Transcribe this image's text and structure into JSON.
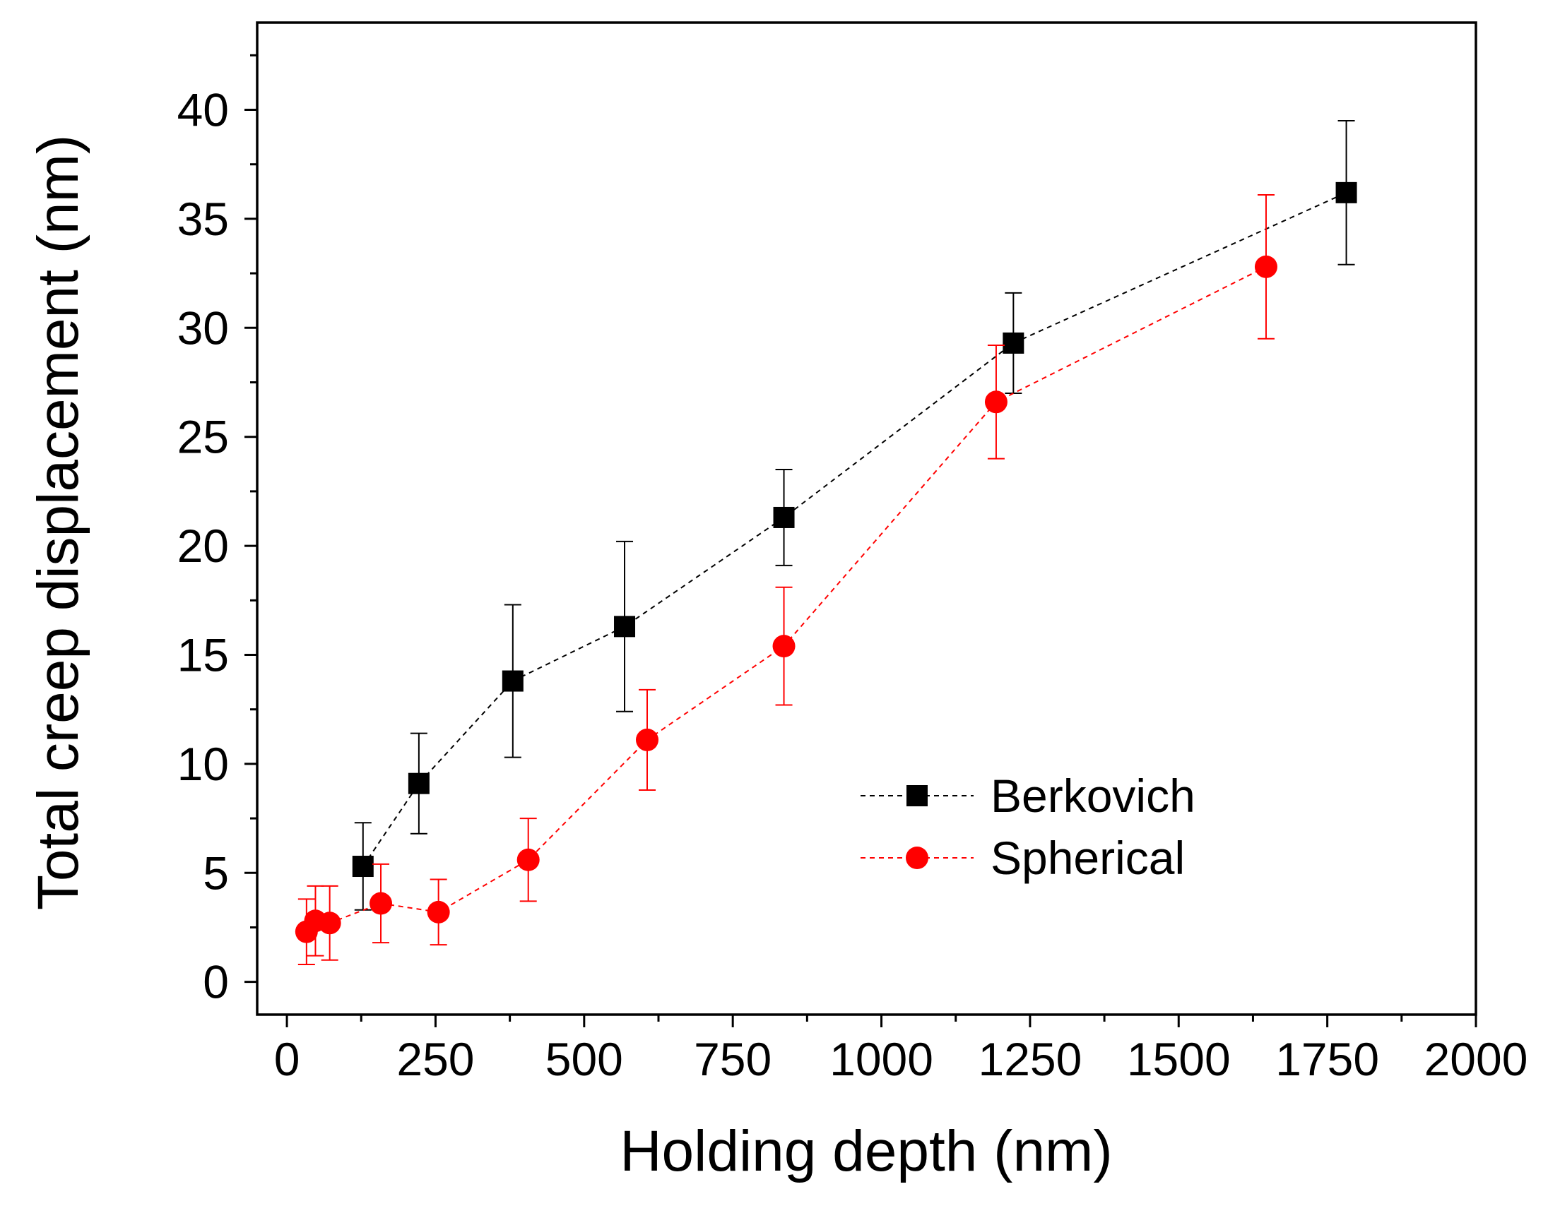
{
  "chart_data": {
    "type": "scatter",
    "xlabel": "Holding depth (nm)",
    "ylabel": "Total creep displacement (nm)",
    "xlim": [
      -50,
      2000
    ],
    "ylim": [
      -1.5,
      44
    ],
    "x_ticks": [
      0,
      250,
      500,
      750,
      1000,
      1250,
      1500,
      1750,
      2000
    ],
    "x_tick_labels": [
      "0",
      "250",
      "500",
      "750",
      "1000",
      "1250",
      "1500",
      "1750",
      "2000"
    ],
    "y_ticks": [
      0,
      5,
      10,
      15,
      20,
      25,
      30,
      35,
      40
    ],
    "y_tick_labels": [
      "0",
      "5",
      "10",
      "15",
      "20",
      "25",
      "30",
      "35",
      "40"
    ],
    "legend_position": "center-right",
    "grid": false,
    "series": [
      {
        "name": "Berkovich",
        "color": "#000000",
        "marker": "square",
        "line_style": "dashed",
        "x": [
          128,
          222,
          380,
          568,
          836,
          1222,
          1782
        ],
        "y": [
          5.3,
          9.1,
          13.8,
          16.3,
          21.3,
          29.3,
          36.2
        ],
        "err": [
          2.0,
          2.3,
          3.5,
          3.9,
          2.2,
          2.3,
          3.3
        ]
      },
      {
        "name": "Spherical",
        "color": "#ff0000",
        "marker": "circle",
        "line_style": "dashed",
        "x": [
          33,
          48,
          72,
          158,
          255,
          406,
          606,
          836,
          1193,
          1647
        ],
        "y": [
          2.3,
          2.8,
          2.7,
          3.6,
          3.2,
          5.6,
          11.1,
          15.4,
          26.6,
          32.8
        ],
        "err": [
          1.5,
          1.6,
          1.7,
          1.8,
          1.5,
          1.9,
          2.3,
          2.7,
          2.6,
          3.3
        ]
      }
    ]
  }
}
